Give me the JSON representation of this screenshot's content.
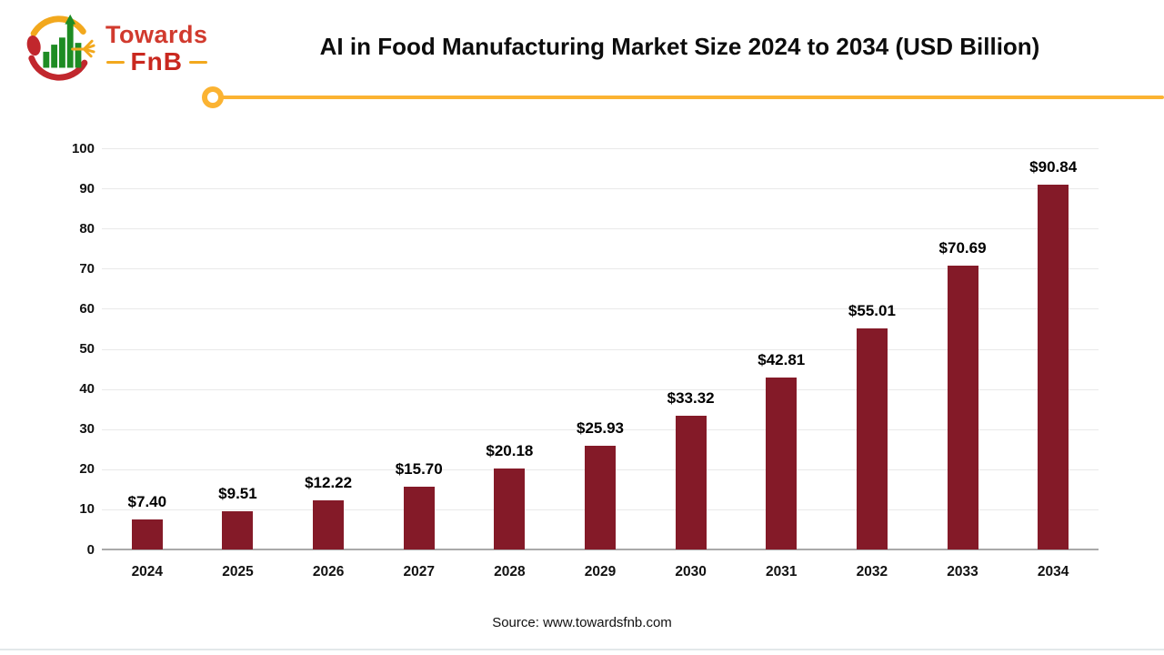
{
  "header": {
    "logo": {
      "word_top": "Towards",
      "word_bottom": "FnB"
    },
    "title": "AI in Food Manufacturing Market Size 2024 to 2034 (USD Billion)"
  },
  "footer": {
    "source": "Source: www.towardsfnb.com"
  },
  "colors": {
    "bar": "#841a28",
    "accent_gold": "#fbb332",
    "logo_red": "#c9281f",
    "logo_green": "#1e8c23",
    "gridline": "#e9e9e9",
    "axis": "#a9a9a9"
  },
  "chart_data": {
    "type": "bar",
    "title": "AI in Food Manufacturing Market Size 2024 to 2034 (USD Billion)",
    "xlabel": "",
    "ylabel": "",
    "categories": [
      "2024",
      "2025",
      "2026",
      "2027",
      "2028",
      "2029",
      "2030",
      "2031",
      "2032",
      "2033",
      "2034"
    ],
    "values": [
      7.4,
      9.51,
      12.22,
      15.7,
      20.18,
      25.93,
      33.32,
      42.81,
      55.01,
      70.69,
      90.84
    ],
    "value_labels": [
      "$7.40",
      "$9.51",
      "$12.22",
      "$15.70",
      "$20.18",
      "$25.93",
      "$33.32",
      "$42.81",
      "$55.01",
      "$70.69",
      "$90.84"
    ],
    "ylim": [
      0,
      100
    ],
    "yticks": [
      0,
      10,
      20,
      30,
      40,
      50,
      60,
      70,
      80,
      90,
      100
    ],
    "grid": true,
    "legend": false,
    "unit": "USD Billion"
  }
}
